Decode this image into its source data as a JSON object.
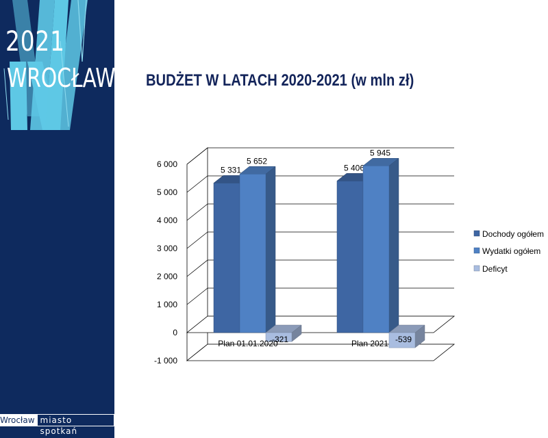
{
  "branding": {
    "year": "2021",
    "city": "WROCŁAW",
    "footer_city": "Wrocław",
    "footer_tagline": "miasto spotkań"
  },
  "colors": {
    "sidebar_bg": "#0e2a5e",
    "accent_cyan": "#5ec8e5",
    "series_dochody": "#3e66a3",
    "series_wydatki": "#4f81c4",
    "series_deficyt": "#a9bde0"
  },
  "chart_data": {
    "type": "bar",
    "style": "3d-clustered-column",
    "title": "BUDŻET W LATACH 2020-2021 (w mln zł)",
    "categories": [
      "Plan 01.01.2020",
      "Plan 2021"
    ],
    "series": [
      {
        "name": "Dochody ogółem",
        "values": [
          5331,
          5406
        ],
        "labels": [
          "5 331",
          "5 406"
        ]
      },
      {
        "name": "Wydatki ogółem",
        "values": [
          5652,
          5945
        ],
        "labels": [
          "5 652",
          "5 945"
        ]
      },
      {
        "name": "Deficyt",
        "values": [
          -321,
          -539
        ],
        "labels": [
          "-321",
          "-539"
        ]
      }
    ],
    "ylim": [
      -1000,
      6000
    ],
    "yticks": [
      -1000,
      0,
      1000,
      2000,
      3000,
      4000,
      5000,
      6000
    ],
    "ytick_labels": [
      "-1 000",
      "0",
      "1 000",
      "2 000",
      "3 000",
      "4 000",
      "5 000",
      "6 000"
    ],
    "grid": true,
    "legend_position": "right"
  }
}
